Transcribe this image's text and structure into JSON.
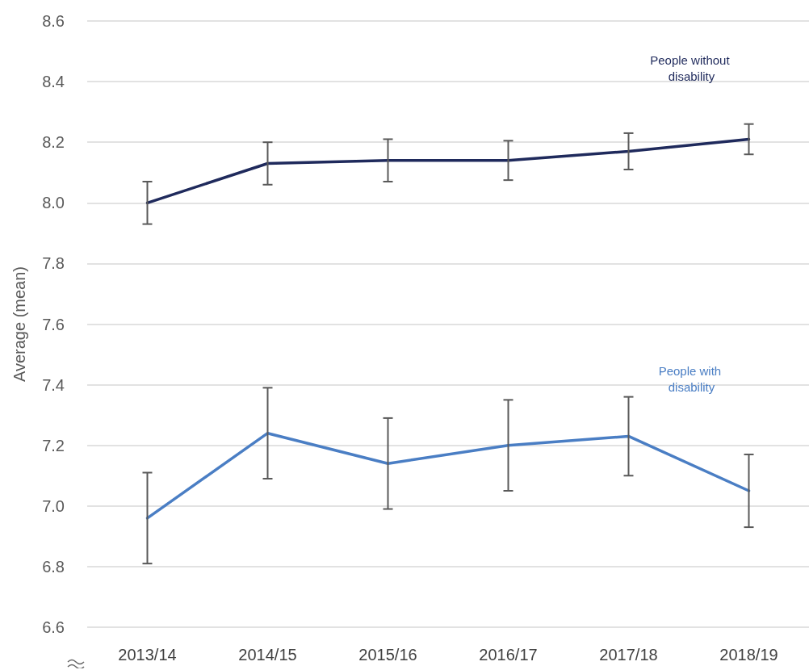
{
  "chart_data": {
    "type": "line",
    "ylabel": "Average (mean)",
    "categories": [
      "2013/14",
      "2014/15",
      "2015/16",
      "2016/17",
      "2017/18",
      "2018/19"
    ],
    "series": [
      {
        "name": "People without disability",
        "color": "#1f2a5c",
        "values": [
          8.0,
          8.13,
          8.14,
          8.14,
          8.17,
          8.21
        ],
        "errors": [
          0.07,
          0.07,
          0.07,
          0.065,
          0.06,
          0.05
        ]
      },
      {
        "name": "People with disability",
        "color": "#4a7ec4",
        "values": [
          6.96,
          7.24,
          7.14,
          7.2,
          7.23,
          7.05
        ],
        "errors": [
          0.15,
          0.15,
          0.15,
          0.15,
          0.13,
          0.12
        ]
      }
    ],
    "ylim": [
      6.6,
      8.6
    ],
    "yticks": [
      6.6,
      6.8,
      {
        "value": 7,
        "label": "7.0"
      },
      7.2,
      7.4,
      7.6,
      7.8,
      {
        "value": 8,
        "label": "8.0"
      },
      8.2,
      8.4,
      8.6
    ],
    "grid": "y",
    "legend": false,
    "marker": "none",
    "line_style": "solid"
  }
}
